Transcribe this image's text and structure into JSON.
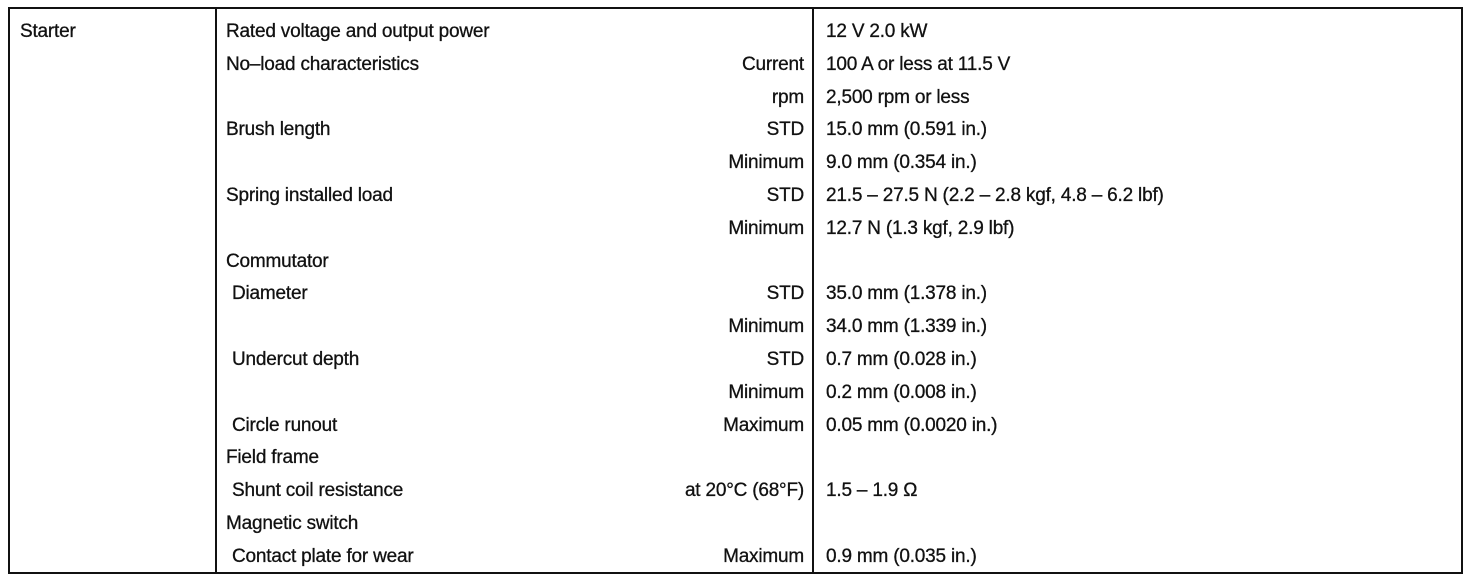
{
  "table": {
    "section": "Starter",
    "rows": [
      {
        "item": "Rated voltage and output power",
        "spec": "12 V  2.0 kW"
      },
      {
        "item": "No–load characteristics",
        "condition": "Current",
        "spec": "100 A or less at 11.5 V"
      },
      {
        "condition": "rpm",
        "spec": "2,500 rpm or less"
      },
      {
        "item": "Brush length",
        "condition": "STD",
        "spec": "15.0 mm (0.591 in.)"
      },
      {
        "condition": "Minimum",
        "spec": "9.0 mm (0.354 in.)"
      },
      {
        "item": "Spring installed load",
        "condition": "STD",
        "spec": "21.5 – 27.5 N (2.2 – 2.8 kgf, 4.8 – 6.2 lbf)"
      },
      {
        "condition": "Minimum",
        "spec": "12.7 N (1.3 kgf, 2.9 lbf)"
      },
      {
        "item": "Commutator"
      },
      {
        "subitem": "Diameter",
        "condition": "STD",
        "spec": "35.0 mm (1.378 in.)"
      },
      {
        "condition": "Minimum",
        "spec": "34.0 mm (1.339 in.)"
      },
      {
        "subitem": "Undercut depth",
        "condition": "STD",
        "spec": "0.7 mm (0.028 in.)"
      },
      {
        "condition": "Minimum",
        "spec": "0.2 mm (0.008 in.)"
      },
      {
        "subitem": "Circle runout",
        "condition": "Maximum",
        "spec": "0.05 mm (0.0020 in.)"
      },
      {
        "item": "Field frame"
      },
      {
        "subitem": "Shunt coil resistance",
        "condition": "at 20°C (68°F)",
        "spec": "1.5 – 1.9 Ω"
      },
      {
        "item": "Magnetic switch"
      },
      {
        "subitem": "Contact plate for wear",
        "condition": "Maximum",
        "spec": "0.9 mm (0.035 in.)"
      }
    ]
  }
}
